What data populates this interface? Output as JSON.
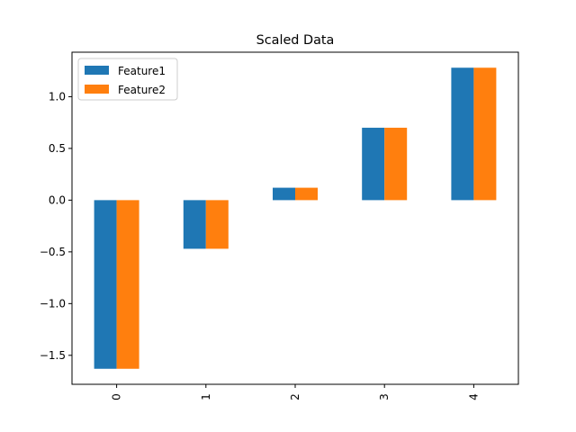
{
  "chart_data": {
    "type": "bar",
    "title": "Scaled Data",
    "xlabel": "",
    "ylabel": "",
    "categories": [
      "0",
      "1",
      "2",
      "3",
      "4"
    ],
    "series": [
      {
        "name": "Feature1",
        "color": "#1f77b4",
        "values": [
          -1.63,
          -0.47,
          0.12,
          0.7,
          1.28
        ]
      },
      {
        "name": "Feature2",
        "color": "#ff7f0e",
        "values": [
          -1.63,
          -0.47,
          0.12,
          0.7,
          1.28
        ]
      }
    ],
    "ylim": [
      -1.78,
      1.43
    ],
    "yticks": [
      -1.5,
      -1.0,
      -0.5,
      0.0,
      0.5,
      1.0
    ],
    "ytick_labels": [
      "−1.5",
      "−1.0",
      "−0.5",
      "0.0",
      "0.5",
      "1.0"
    ],
    "xtick_rotation": "vertical",
    "grid": false,
    "legend": "upper-left"
  }
}
